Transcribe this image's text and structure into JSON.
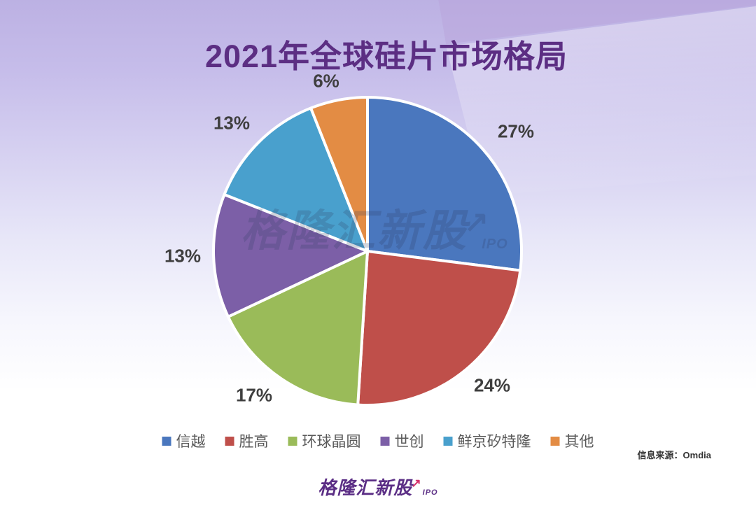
{
  "title": "2021年全球硅片市场格局",
  "source_note": "信息来源：Omdia",
  "watermark": {
    "text": "格隆汇新股",
    "arrow": "↗",
    "sub": "IPO"
  },
  "footer_logo": {
    "text": "格隆汇新股",
    "arrow": "↗",
    "sub": "IPO"
  },
  "colors": {
    "title_purple": "#5C2E83",
    "percent_label": "#3F3F3F",
    "legend_text": "#595959",
    "logo_purple": "#5B2E85",
    "logo_pink": "#D6336C",
    "background_top": "#BCB1E3",
    "background_bottom": "#FFFFFF",
    "slice_border": "#FFFFFF"
  },
  "chart_data": {
    "type": "pie",
    "title": "2021年全球硅片市场格局",
    "start_angle_deg": 0,
    "direction": "clockwise",
    "legend_position": "bottom",
    "categories": [
      "信越",
      "胜高",
      "环球晶圆",
      "世创",
      "鲜京矽特隆",
      "其他"
    ],
    "values": [
      27,
      24,
      17,
      13,
      13,
      6
    ],
    "slices": [
      {
        "name": "信越",
        "value": 27,
        "pct_label": "27%",
        "color": "#4A77BE"
      },
      {
        "name": "胜高",
        "value": 24,
        "pct_label": "24%",
        "color": "#BF4F4A"
      },
      {
        "name": "环球晶圆",
        "value": 17,
        "pct_label": "17%",
        "color": "#9ABB59"
      },
      {
        "name": "世创",
        "value": 13,
        "pct_label": "13%",
        "color": "#7C5FA7"
      },
      {
        "name": "鲜京矽特隆",
        "value": 13,
        "pct_label": "13%",
        "color": "#49A0CD"
      },
      {
        "name": "其他",
        "value": 6,
        "pct_label": "6%",
        "color": "#E38C44"
      }
    ]
  }
}
